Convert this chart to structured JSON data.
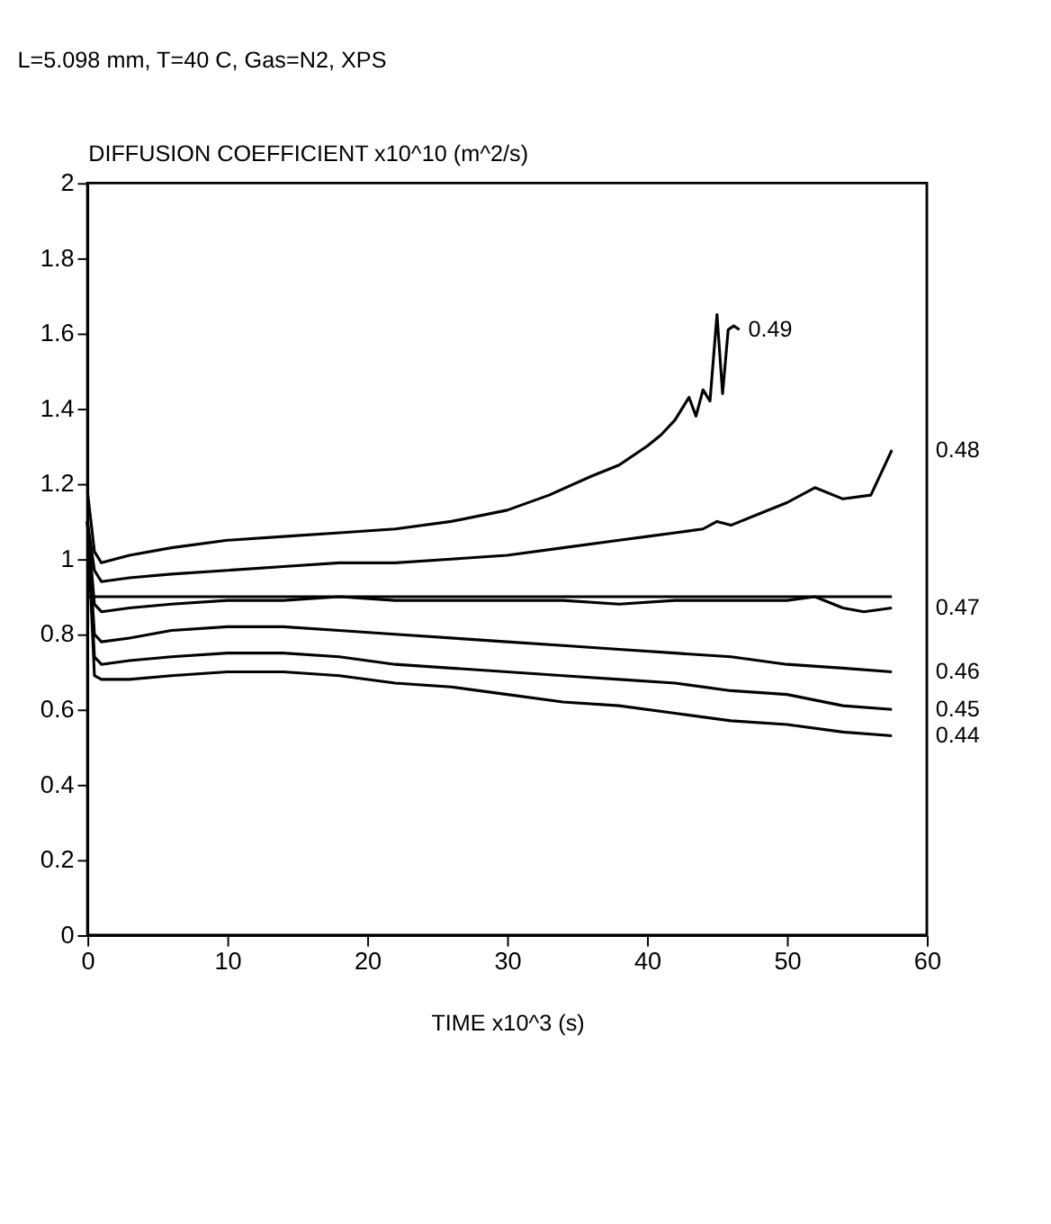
{
  "chart_data": {
    "type": "line",
    "title": "L=5.098 mm, T=40 C, Gas=N2, XPS",
    "ylabel": "DIFFUSION COEFFICIENT  x10^10  (m^2/s)",
    "xlabel": "TIME  x10^3  (s)",
    "xlim": [
      0,
      60
    ],
    "xticks": [
      0,
      10,
      20,
      30,
      40,
      50,
      60
    ],
    "ylim": [
      0,
      2
    ],
    "yticks": [
      0,
      0.2,
      0.4,
      0.6,
      0.8,
      1,
      1.2,
      1.4,
      1.6,
      1.8,
      2
    ],
    "grid": false,
    "marker": "none",
    "line_style": "solid",
    "series": [
      {
        "name": "0.49",
        "color": "#000000",
        "x": [
          0,
          0.5,
          1,
          3,
          6,
          10,
          14,
          18,
          22,
          26,
          30,
          33,
          36,
          38,
          40,
          41,
          42,
          43,
          43.5,
          44,
          44.5,
          45,
          45.4,
          45.8,
          46.2,
          46.6
        ],
        "values": [
          1.18,
          1.02,
          0.99,
          1.01,
          1.03,
          1.05,
          1.06,
          1.07,
          1.08,
          1.1,
          1.13,
          1.17,
          1.22,
          1.25,
          1.3,
          1.33,
          1.37,
          1.43,
          1.38,
          1.45,
          1.42,
          1.65,
          1.44,
          1.61,
          1.62,
          1.61
        ]
      },
      {
        "name": "0.48",
        "color": "#000000",
        "x": [
          0,
          0.5,
          1,
          3,
          6,
          10,
          14,
          18,
          22,
          26,
          30,
          34,
          38,
          40,
          42,
          44,
          45,
          46,
          48,
          50,
          52,
          54,
          56,
          57.5
        ],
        "values": [
          1.1,
          0.97,
          0.94,
          0.95,
          0.96,
          0.97,
          0.98,
          0.99,
          0.99,
          1.0,
          1.01,
          1.03,
          1.05,
          1.06,
          1.07,
          1.08,
          1.1,
          1.09,
          1.12,
          1.15,
          1.19,
          1.16,
          1.17,
          1.29
        ]
      },
      {
        "color": "#000000",
        "x": [
          0,
          57.5
        ],
        "values": [
          0.9,
          0.9
        ]
      },
      {
        "name": "0.47",
        "color": "#000000",
        "x": [
          0,
          0.5,
          1,
          3,
          6,
          10,
          14,
          18,
          22,
          26,
          30,
          34,
          38,
          42,
          46,
          50,
          52,
          54,
          55.5,
          57.5
        ],
        "values": [
          1.1,
          0.88,
          0.86,
          0.87,
          0.88,
          0.89,
          0.89,
          0.9,
          0.89,
          0.89,
          0.89,
          0.89,
          0.88,
          0.89,
          0.89,
          0.89,
          0.9,
          0.87,
          0.86,
          0.87
        ]
      },
      {
        "name": "0.46",
        "color": "#000000",
        "x": [
          0,
          0.5,
          1,
          3,
          6,
          10,
          14,
          18,
          22,
          26,
          30,
          34,
          38,
          42,
          46,
          50,
          54,
          57.5
        ],
        "values": [
          1.1,
          0.8,
          0.78,
          0.79,
          0.81,
          0.82,
          0.82,
          0.81,
          0.8,
          0.79,
          0.78,
          0.77,
          0.76,
          0.75,
          0.74,
          0.72,
          0.71,
          0.7
        ]
      },
      {
        "name": "0.45",
        "color": "#000000",
        "x": [
          0,
          0.5,
          1,
          3,
          6,
          10,
          14,
          18,
          22,
          26,
          30,
          34,
          38,
          42,
          46,
          50,
          54,
          57.5
        ],
        "values": [
          1.1,
          0.74,
          0.72,
          0.73,
          0.74,
          0.75,
          0.75,
          0.74,
          0.72,
          0.71,
          0.7,
          0.69,
          0.68,
          0.67,
          0.65,
          0.64,
          0.61,
          0.6
        ]
      },
      {
        "name": "0.44",
        "color": "#000000",
        "x": [
          0,
          0.5,
          1,
          3,
          6,
          10,
          14,
          18,
          22,
          26,
          30,
          34,
          38,
          42,
          46,
          50,
          54,
          57.5
        ],
        "values": [
          1.1,
          0.69,
          0.68,
          0.68,
          0.69,
          0.7,
          0.7,
          0.69,
          0.67,
          0.66,
          0.64,
          0.62,
          0.61,
          0.59,
          0.57,
          0.56,
          0.54,
          0.53
        ]
      }
    ]
  }
}
